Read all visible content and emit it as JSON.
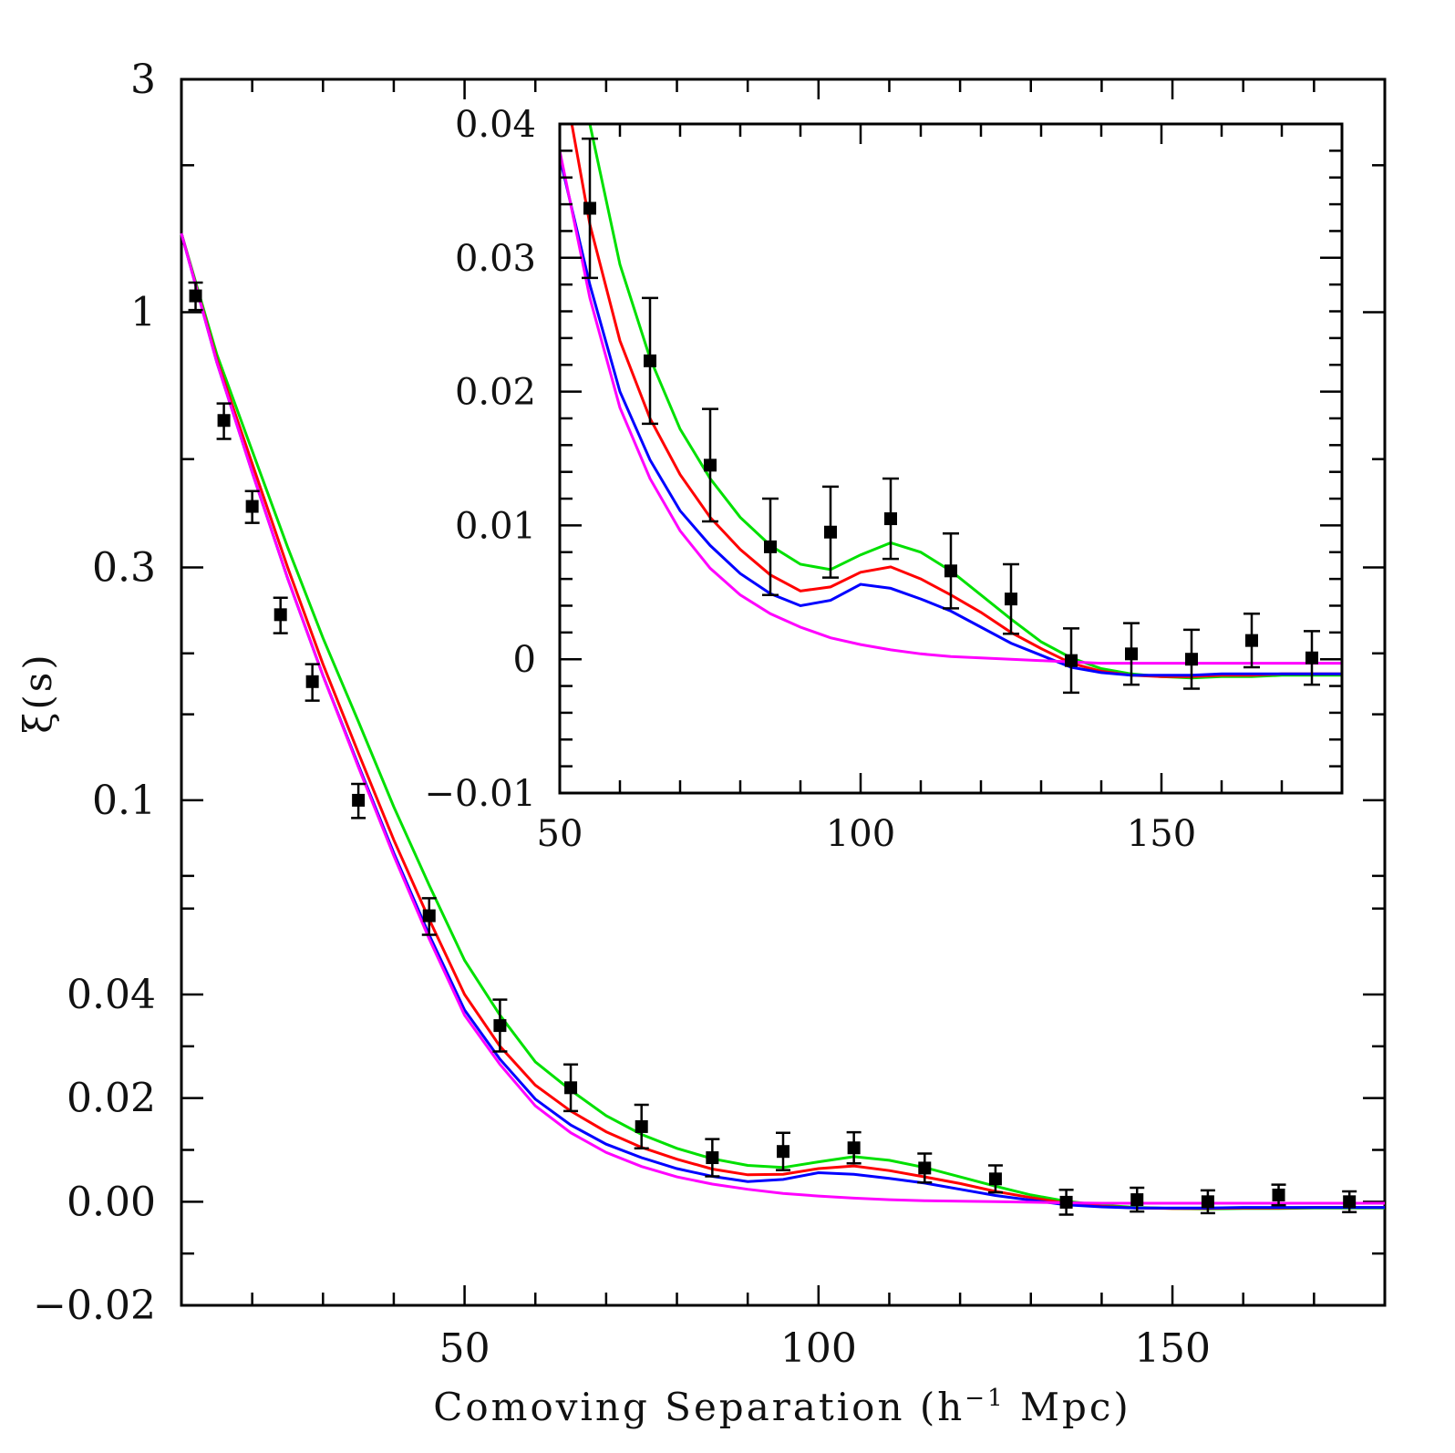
{
  "chart_data": [
    {
      "id": "main",
      "type": "scatter+line",
      "xlabel": "Comoving Separation (h",
      "xlabel_sup": "−1",
      "xlabel_tail": " Mpc)",
      "ylabel": "ξ(s)",
      "xlim": [
        10,
        180
      ],
      "y_scale": "log above 0.04, linear below (transformed axis)",
      "ylim": [
        -0.02,
        3
      ],
      "x_ticks": [
        50,
        100,
        150
      ],
      "x_tick_labels": [
        "50",
        "100",
        "150"
      ],
      "y_ticks": [
        3,
        1,
        0.3,
        0.1,
        0.04,
        0.02,
        0.0,
        -0.02
      ],
      "y_tick_labels": [
        "3",
        "1",
        "0.3",
        "0.1",
        "0.04",
        "0.02",
        "0.00",
        "−0.02"
      ],
      "points": {
        "x": [
          12,
          16,
          20,
          24,
          28.5,
          35,
          45,
          55,
          65,
          75,
          85,
          95,
          105,
          115,
          125,
          135,
          145,
          155,
          165,
          175
        ],
        "y": [
          1.08,
          0.6,
          0.4,
          0.24,
          0.175,
          0.1,
          0.058,
          0.034,
          0.022,
          0.0145,
          0.0085,
          0.0097,
          0.0104,
          0.0065,
          0.0044,
          -0.0001,
          0.0004,
          0.0,
          0.0013,
          0.0
        ],
        "err": [
          0.07,
          0.05,
          0.03,
          0.02,
          0.015,
          0.008,
          0.005,
          0.005,
          0.0045,
          0.0042,
          0.0036,
          0.0036,
          0.003,
          0.0028,
          0.0026,
          0.0024,
          0.0023,
          0.0022,
          0.002,
          0.002
        ]
      },
      "series": [
        {
          "name": "green model",
          "color": "#00e000",
          "x": [
            10,
            15,
            20,
            25,
            30,
            35,
            40,
            45,
            50,
            55,
            60,
            65,
            70,
            75,
            80,
            85,
            90,
            95,
            100,
            105,
            110,
            115,
            120,
            125,
            130,
            135,
            140,
            145,
            150,
            155,
            160,
            165,
            170,
            175,
            180
          ],
          "y": [
            1.45,
            0.82,
            0.52,
            0.33,
            0.215,
            0.145,
            0.097,
            0.067,
            0.047,
            0.036,
            0.027,
            0.0215,
            0.0166,
            0.013,
            0.0103,
            0.0083,
            0.007,
            0.0066,
            0.0077,
            0.0087,
            0.008,
            0.0066,
            0.0048,
            0.003,
            0.0013,
            0.0001,
            -0.0007,
            -0.0011,
            -0.0013,
            -0.0014,
            -0.0013,
            -0.0013,
            -0.0012,
            -0.0012,
            -0.0012
          ]
        },
        {
          "name": "red model",
          "color": "#ff0000",
          "x": [
            10,
            15,
            20,
            25,
            30,
            35,
            40,
            45,
            50,
            55,
            60,
            65,
            70,
            75,
            80,
            85,
            90,
            95,
            100,
            105,
            110,
            115,
            120,
            125,
            130,
            135,
            140,
            145,
            150,
            155,
            160,
            165,
            170,
            175,
            180
          ],
          "y": [
            1.45,
            0.8,
            0.49,
            0.3,
            0.19,
            0.125,
            0.083,
            0.057,
            0.04,
            0.03,
            0.0225,
            0.0175,
            0.0135,
            0.0105,
            0.0082,
            0.0063,
            0.0052,
            0.0053,
            0.0064,
            0.0069,
            0.006,
            0.0048,
            0.0035,
            0.002,
            0.0008,
            -0.0003,
            -0.0009,
            -0.0012,
            -0.0013,
            -0.0013,
            -0.0012,
            -0.0012,
            -0.0011,
            -0.0011,
            -0.0011
          ]
        },
        {
          "name": "blue model",
          "color": "#0000ff",
          "x": [
            10,
            15,
            20,
            25,
            30,
            35,
            40,
            45,
            50,
            55,
            60,
            65,
            70,
            75,
            80,
            85,
            90,
            95,
            100,
            105,
            110,
            115,
            120,
            125,
            130,
            135,
            140,
            145,
            150,
            155,
            160,
            165,
            170,
            175,
            180
          ],
          "y": [
            1.45,
            0.79,
            0.47,
            0.285,
            0.18,
            0.118,
            0.078,
            0.053,
            0.037,
            0.0275,
            0.0198,
            0.0148,
            0.0111,
            0.0085,
            0.0064,
            0.0049,
            0.0039,
            0.0043,
            0.0056,
            0.0053,
            0.0045,
            0.0036,
            0.0024,
            0.0012,
            0.0003,
            -0.0006,
            -0.001,
            -0.0012,
            -0.0012,
            -0.0012,
            -0.0011,
            -0.0011,
            -0.0011,
            -0.0011,
            -0.0011
          ]
        },
        {
          "name": "magenta model",
          "color": "#ff00ff",
          "x": [
            10,
            15,
            20,
            25,
            30,
            35,
            40,
            45,
            50,
            55,
            60,
            65,
            70,
            75,
            80,
            85,
            90,
            95,
            100,
            105,
            110,
            115,
            120,
            125,
            130,
            135,
            140,
            145,
            150,
            155,
            160,
            165,
            170,
            175,
            180
          ],
          "y": [
            1.45,
            0.79,
            0.47,
            0.285,
            0.18,
            0.117,
            0.077,
            0.052,
            0.036,
            0.0265,
            0.0185,
            0.0133,
            0.0095,
            0.0068,
            0.0048,
            0.0034,
            0.0024,
            0.0016,
            0.0011,
            0.0007,
            0.0004,
            0.0002,
            0.0001,
            0.0,
            -0.0001,
            -0.0002,
            -0.0003,
            -0.0003,
            -0.0003,
            -0.0003,
            -0.0003,
            -0.0003,
            -0.0003,
            -0.0003,
            -0.0003
          ]
        }
      ]
    },
    {
      "id": "inset",
      "type": "scatter+line",
      "xlim": [
        50,
        180
      ],
      "ylim": [
        -0.01,
        0.04
      ],
      "x_ticks": [
        50,
        100,
        150
      ],
      "x_tick_labels": [
        "50",
        "100",
        "150"
      ],
      "y_ticks": [
        0.04,
        0.03,
        0.02,
        0.01,
        0,
        -0.01
      ],
      "y_tick_labels": [
        "0.04",
        "0.03",
        "0.02",
        "0.01",
        "0",
        "−0.01"
      ],
      "points": {
        "x": [
          55,
          65,
          75,
          85,
          95,
          105,
          115,
          125,
          135,
          145,
          155,
          165,
          175
        ],
        "y": [
          0.0337,
          0.0223,
          0.0145,
          0.0084,
          0.0095,
          0.0105,
          0.0066,
          0.0045,
          -0.0001,
          0.0004,
          0.0,
          0.0014,
          0.0001
        ],
        "err": [
          0.0052,
          0.0047,
          0.0042,
          0.0036,
          0.0034,
          0.003,
          0.0028,
          0.0026,
          0.0024,
          0.0023,
          0.0022,
          0.002,
          0.002
        ]
      },
      "series": [
        {
          "name": "green model",
          "color": "#00e000",
          "x": [
            55,
            60,
            65,
            70,
            75,
            80,
            85,
            90,
            95,
            100,
            105,
            110,
            115,
            120,
            125,
            130,
            135,
            140,
            145,
            150,
            155,
            160,
            165,
            170,
            175,
            180
          ],
          "y": [
            0.042,
            0.0295,
            0.0225,
            0.0172,
            0.0135,
            0.0106,
            0.0085,
            0.0071,
            0.0067,
            0.0078,
            0.0087,
            0.008,
            0.0066,
            0.0048,
            0.003,
            0.0013,
            0.0001,
            -0.0007,
            -0.0011,
            -0.0013,
            -0.0014,
            -0.0013,
            -0.0013,
            -0.0012,
            -0.0012,
            -0.0012
          ]
        },
        {
          "name": "red model",
          "color": "#ff0000",
          "x": [
            52,
            55,
            60,
            65,
            70,
            75,
            80,
            85,
            90,
            95,
            100,
            105,
            110,
            115,
            120,
            125,
            130,
            135,
            140,
            145,
            150,
            155,
            160,
            165,
            170,
            175,
            180
          ],
          "y": [
            0.041,
            0.0325,
            0.0238,
            0.018,
            0.0138,
            0.0106,
            0.0082,
            0.0063,
            0.0051,
            0.0054,
            0.0065,
            0.0069,
            0.006,
            0.0048,
            0.0035,
            0.002,
            0.0008,
            -0.0003,
            -0.0009,
            -0.0012,
            -0.0013,
            -0.0013,
            -0.0012,
            -0.0012,
            -0.0011,
            -0.0011,
            -0.0011
          ]
        },
        {
          "name": "blue model",
          "color": "#0000ff",
          "x": [
            50,
            55,
            60,
            65,
            70,
            75,
            80,
            85,
            90,
            95,
            100,
            105,
            110,
            115,
            120,
            125,
            130,
            135,
            140,
            145,
            150,
            155,
            160,
            165,
            170,
            175,
            180
          ],
          "y": [
            0.0375,
            0.028,
            0.02,
            0.0149,
            0.0111,
            0.0085,
            0.0064,
            0.0049,
            0.004,
            0.0044,
            0.0056,
            0.0053,
            0.0045,
            0.0036,
            0.0024,
            0.0012,
            0.0003,
            -0.0006,
            -0.001,
            -0.0012,
            -0.0012,
            -0.0012,
            -0.0011,
            -0.0011,
            -0.0011,
            -0.0011,
            -0.0011
          ]
        },
        {
          "name": "magenta model",
          "color": "#ff00ff",
          "x": [
            50,
            55,
            60,
            65,
            70,
            75,
            80,
            85,
            90,
            95,
            100,
            105,
            110,
            115,
            120,
            125,
            130,
            135,
            140,
            145,
            150,
            155,
            160,
            165,
            170,
            175,
            180
          ],
          "y": [
            0.038,
            0.027,
            0.0188,
            0.0135,
            0.0096,
            0.0068,
            0.0048,
            0.0034,
            0.0024,
            0.0016,
            0.0011,
            0.0007,
            0.0004,
            0.0002,
            0.0001,
            0.0,
            -0.0001,
            -0.0002,
            -0.0003,
            -0.0003,
            -0.0003,
            -0.0003,
            -0.0003,
            -0.0003,
            -0.0003,
            -0.0003,
            -0.0003
          ]
        }
      ]
    }
  ]
}
